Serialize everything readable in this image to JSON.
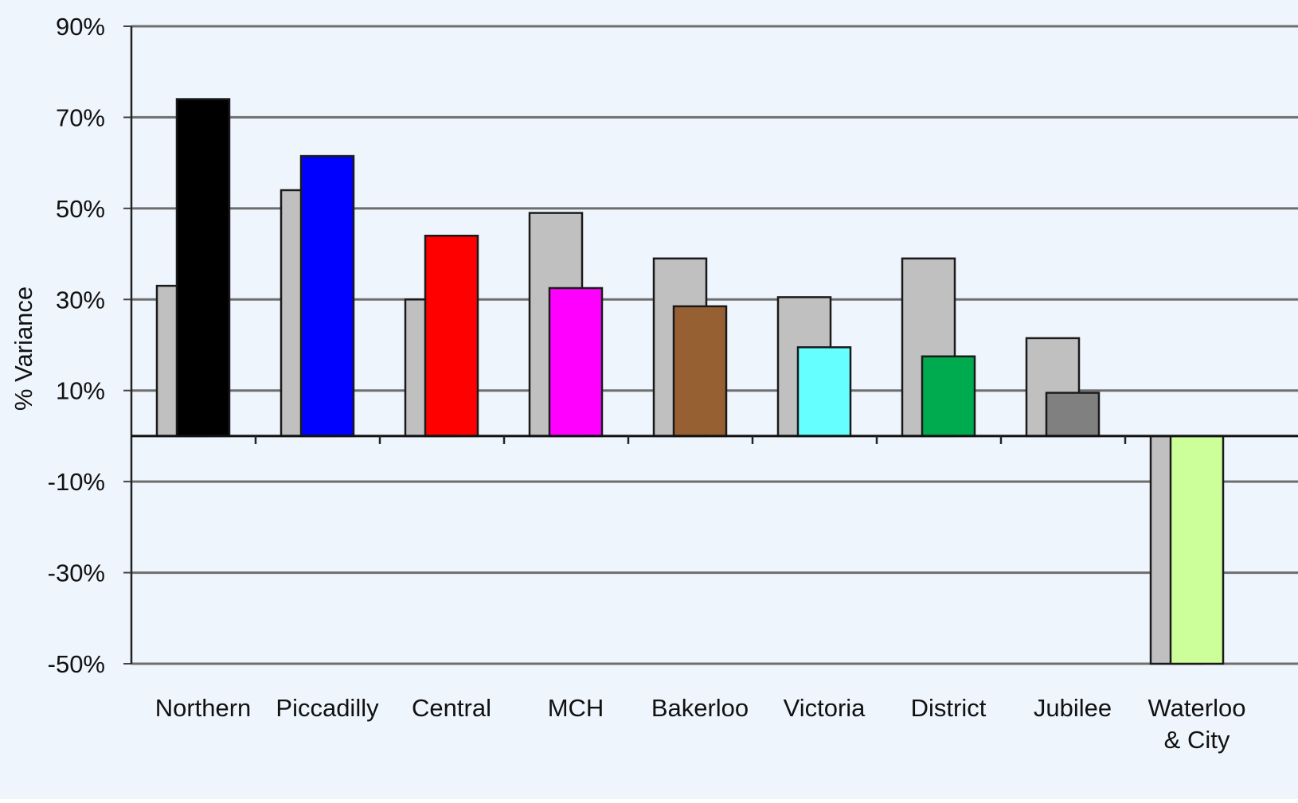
{
  "chart_data": {
    "type": "bar",
    "title": "",
    "xlabel": "",
    "ylabel": "% Variance",
    "ylim": [
      -50,
      90
    ],
    "yticks": [
      90,
      70,
      50,
      30,
      10,
      -10,
      -30,
      -50
    ],
    "ytick_labels": [
      "90%",
      "70%",
      "50%",
      "30%",
      "10%",
      "-10%",
      "-30%",
      "-50%"
    ],
    "grid": true,
    "legend": "none",
    "categories": [
      [
        "Northern"
      ],
      [
        "Piccadilly"
      ],
      [
        "Central"
      ],
      [
        "MCH"
      ],
      [
        "Bakerloo"
      ],
      [
        "Victoria"
      ],
      [
        "District"
      ],
      [
        "Jubilee"
      ],
      [
        "Waterloo",
        "& City"
      ]
    ],
    "series": [
      {
        "values": [
          33,
          54,
          30,
          49,
          39,
          30.5,
          39,
          21.5,
          -50
        ],
        "colors": [
          "#c0c0c0",
          "#c0c0c0",
          "#c0c0c0",
          "#c0c0c0",
          "#c0c0c0",
          "#c0c0c0",
          "#c0c0c0",
          "#c0c0c0",
          "#c0c0c0"
        ]
      },
      {
        "values": [
          74,
          61.5,
          44,
          32.5,
          28.5,
          19.5,
          17.5,
          9.5,
          -50
        ],
        "colors": [
          "#000000",
          "#0000ff",
          "#ff0000",
          "#ff00ff",
          "#966033",
          "#66ffff",
          "#00aa4e",
          "#808080",
          "#ccff99"
        ]
      }
    ],
    "background": "#eef5fc"
  }
}
